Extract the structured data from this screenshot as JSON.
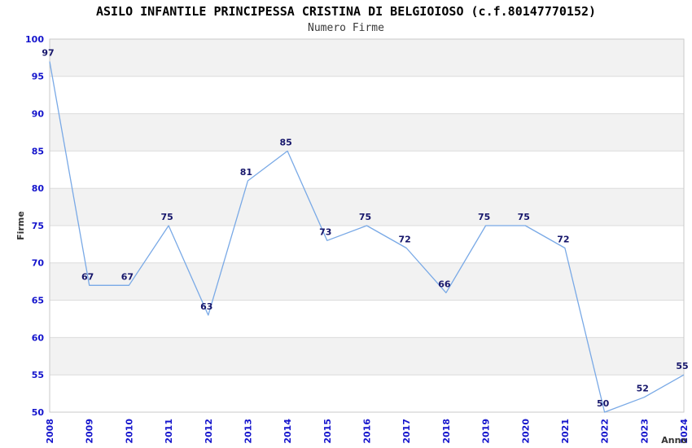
{
  "chart": {
    "title": "ASILO INFANTILE PRINCIPESSA CRISTINA DI BELGIOIOSO (c.f.80147770152)",
    "subtitle": "Numero Firme",
    "ylabel": "Firme",
    "xlabel": "Anno"
  },
  "chart_data": {
    "type": "line",
    "title": "ASILO INFANTILE PRINCIPESSA CRISTINA DI BELGIOIOSO (c.f.80147770152)",
    "subtitle": "Numero Firme",
    "xlabel": "Anno",
    "ylabel": "Firme",
    "categories": [
      "2008",
      "2009",
      "2010",
      "2011",
      "2012",
      "2013",
      "2014",
      "2015",
      "2016",
      "2017",
      "2018",
      "2019",
      "2020",
      "2021",
      "2022",
      "2023",
      "2024"
    ],
    "values": [
      97,
      67,
      67,
      75,
      63,
      81,
      85,
      73,
      75,
      72,
      66,
      75,
      75,
      72,
      50,
      52,
      55
    ],
    "ylim": [
      50,
      100
    ],
    "ytick_step": 5,
    "grid": "horizontal-bands-alternating",
    "legend_position": "none",
    "colors": {
      "line": "#79a9e6",
      "band_gray": "#f2f2f2",
      "band_white": "#ffffff",
      "gridline": "#dcdcdc",
      "plot_border": "#c9c9c9",
      "tick_label": "#1414cc",
      "value_label": "#16166b",
      "axis_title": "#333333"
    }
  }
}
